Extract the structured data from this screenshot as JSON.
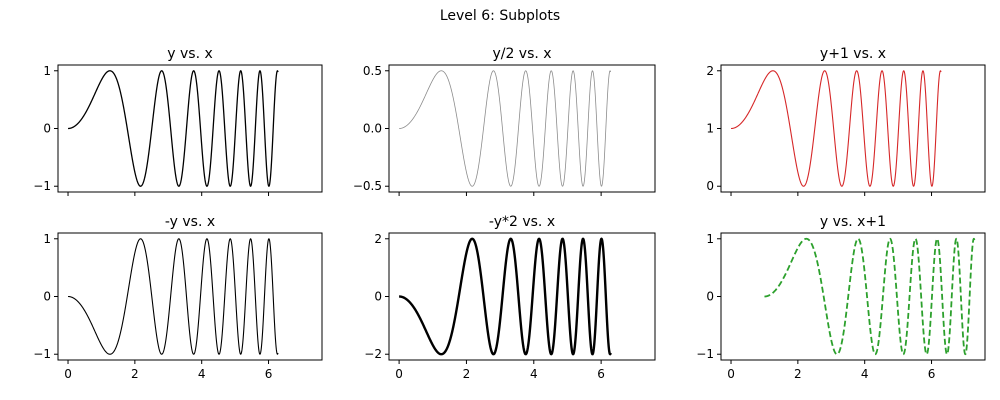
{
  "figure": {
    "title": "Level 6: Subplots"
  },
  "chart_data": [
    {
      "type": "line",
      "title": "y vs. x",
      "function": "sin(x^2)",
      "x_range": [
        0,
        6.2832
      ],
      "x_shift": 0,
      "y_scale": 1,
      "y_offset": 0,
      "xlim": [
        -0.3,
        7.6
      ],
      "ylim": [
        -1.1,
        1.1
      ],
      "yticks": [
        -1,
        0,
        1
      ],
      "ytick_labels": [
        "−1",
        "0",
        "1"
      ],
      "xticks": [
        0,
        2,
        4,
        6
      ],
      "xtick_labels": [],
      "series": [
        {
          "color": "#000000",
          "line_style": "solid",
          "line_width": 1.3
        }
      ]
    },
    {
      "type": "line",
      "title": "y/2 vs. x",
      "function": "sin(x^2)/2",
      "x_range": [
        0,
        6.2832
      ],
      "x_shift": 0,
      "y_scale": 0.5,
      "y_offset": 0,
      "xlim": [
        -0.3,
        7.6
      ],
      "ylim": [
        -0.55,
        0.55
      ],
      "yticks": [
        -0.5,
        0,
        0.5
      ],
      "ytick_labels": [
        "−0.5",
        "0.0",
        "0.5"
      ],
      "xticks": [
        0,
        2,
        4,
        6
      ],
      "xtick_labels": [],
      "series": [
        {
          "color": "#8c8c8c",
          "line_style": "solid",
          "line_width": 0.8
        }
      ]
    },
    {
      "type": "line",
      "title": "y+1 vs. x",
      "function": "sin(x^2)+1",
      "x_range": [
        0,
        6.2832
      ],
      "x_shift": 0,
      "y_scale": 1,
      "y_offset": 1,
      "xlim": [
        -0.3,
        7.6
      ],
      "ylim": [
        -0.1,
        2.1
      ],
      "yticks": [
        0,
        1,
        2
      ],
      "ytick_labels": [
        "0",
        "1",
        "2"
      ],
      "xticks": [
        0,
        2,
        4,
        6
      ],
      "xtick_labels": [],
      "series": [
        {
          "color": "#d62728",
          "line_style": "solid",
          "line_width": 1.1
        }
      ]
    },
    {
      "type": "line",
      "title": "-y vs. x",
      "function": "-sin(x^2)",
      "x_range": [
        0,
        6.2832
      ],
      "x_shift": 0,
      "y_scale": -1,
      "y_offset": 0,
      "xlim": [
        -0.3,
        7.6
      ],
      "ylim": [
        -1.1,
        1.1
      ],
      "yticks": [
        -1,
        0,
        1
      ],
      "ytick_labels": [
        "−1",
        "0",
        "1"
      ],
      "xticks": [
        0,
        2,
        4,
        6
      ],
      "xtick_labels": [
        "0",
        "2",
        "4",
        "6"
      ],
      "series": [
        {
          "color": "#000000",
          "line_style": "solid",
          "line_width": 1.1
        }
      ]
    },
    {
      "type": "line",
      "title": "-y*2 vs. x",
      "function": "-2*sin(x^2)",
      "x_range": [
        0,
        6.2832
      ],
      "x_shift": 0,
      "y_scale": -2,
      "y_offset": 0,
      "xlim": [
        -0.3,
        7.6
      ],
      "ylim": [
        -2.2,
        2.2
      ],
      "yticks": [
        -2,
        0,
        2
      ],
      "ytick_labels": [
        "−2",
        "0",
        "2"
      ],
      "xticks": [
        0,
        2,
        4,
        6
      ],
      "xtick_labels": [
        "0",
        "2",
        "4",
        "6"
      ],
      "series": [
        {
          "color": "#000000",
          "line_style": "solid",
          "line_width": 2.4
        }
      ]
    },
    {
      "type": "line",
      "title": "y vs. x+1",
      "function": "sin(x^2), plotted at x+1",
      "x_range": [
        0,
        6.2832
      ],
      "x_shift": 1,
      "y_scale": 1,
      "y_offset": 0,
      "xlim": [
        -0.3,
        7.6
      ],
      "ylim": [
        -1.1,
        1.1
      ],
      "yticks": [
        -1,
        0,
        1
      ],
      "ytick_labels": [
        "−1",
        "0",
        "1"
      ],
      "xticks": [
        0,
        2,
        4,
        6
      ],
      "xtick_labels": [
        "0",
        "2",
        "4",
        "6"
      ],
      "series": [
        {
          "color": "#2ca02c",
          "line_style": "dashed",
          "line_width": 1.8
        }
      ]
    }
  ]
}
